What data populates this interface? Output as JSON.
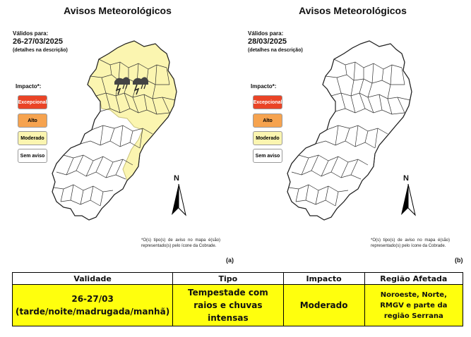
{
  "panels": [
    {
      "title": "Avisos Meteorológicos",
      "valid_label": "Válidos para:",
      "valid_date": "26-27/03/2025",
      "valid_note": "(detalhes na descrição)",
      "impact_title": "Impacto*:",
      "legend": [
        "Excepcional",
        "Alto",
        "Moderado",
        "Sem aviso"
      ],
      "north": "N",
      "footnote": "*O(s) tipo(s) de aviso no mapa é(são) representado(s) pelo ícone da Cobrade.",
      "letter": "(a)",
      "warning_area": "Moderado"
    },
    {
      "title": "Avisos Meteorológicos",
      "valid_label": "Válidos para:",
      "valid_date": "28/03/2025",
      "valid_note": "(detalhes na descrição)",
      "impact_title": "Impacto*:",
      "legend": [
        "Excepcional",
        "Alto",
        "Moderado",
        "Sem aviso"
      ],
      "north": "N",
      "footnote": "*O(s) tipo(s) de aviso no mapa é(são) representado(s) pelo ícone da Cobrade.",
      "letter": "(b)",
      "warning_area": "Sem aviso"
    }
  ],
  "colors": {
    "excepcional": "#ea4426",
    "alto": "#f6a34f",
    "moderado": "#fbf5b0",
    "sem_aviso": "#ffffff",
    "table_fill": "#ffff0d"
  },
  "icons": [
    "cobrade-storm-icon",
    "north-arrow-icon"
  ],
  "table": {
    "headers": [
      "Validade",
      "Tipo",
      "Impacto",
      "Região Afetada"
    ],
    "row": {
      "validade_line1": "26-27/03",
      "validade_line2": "(tarde/noite/madrugada/manhã)",
      "tipo": "Tempestade com raios e chuvas intensas",
      "impacto": "Moderado",
      "regiao": "Noroeste, Norte, RMGV e parte da região Serrana"
    }
  }
}
